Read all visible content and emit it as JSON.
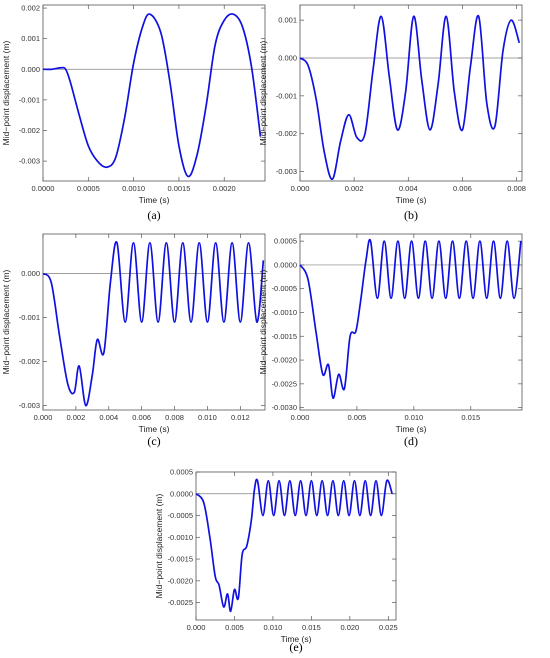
{
  "line_color": "#1010e0",
  "axis_color": "#808080",
  "chart_data": [
    {
      "id": "a",
      "type": "line",
      "caption": "(a)",
      "xlabel": "Time (s)",
      "ylabel": "Mid−point displacement (m)",
      "xlim": [
        0,
        0.00245
      ],
      "ylim": [
        -0.00365,
        0.0021
      ],
      "xticks": [
        "0.0000",
        "0.0005",
        "0.0010",
        "0.0015",
        "0.0020"
      ],
      "yticks": [
        "0.002",
        "0.001",
        "0.000",
        "-0.001",
        "-0.002",
        "-0.003"
      ],
      "x": [
        0,
        0.0001,
        0.0002,
        0.00025,
        0.0003,
        0.0004,
        0.0005,
        0.0006,
        0.0007,
        0.0008,
        0.0009,
        0.001,
        0.0011,
        0.00118,
        0.0013,
        0.0014,
        0.0015,
        0.0016,
        0.0017,
        0.0018,
        0.0019,
        0.002,
        0.0021,
        0.0022,
        0.0023,
        0.0024
      ],
      "y": [
        0,
        0,
        5e-05,
        0,
        -0.0004,
        -0.0015,
        -0.0025,
        -0.003,
        -0.0032,
        -0.0029,
        -0.0016,
        0.0002,
        0.0014,
        0.0018,
        0.0012,
        -0.0004,
        -0.0025,
        -0.0035,
        -0.0028,
        -0.0012,
        0.0008,
        0.0016,
        0.0018,
        0.0014,
        0.0001,
        -0.0022
      ]
    },
    {
      "id": "b",
      "type": "line",
      "caption": "(b)",
      "xlabel": "Time (s)",
      "ylabel": "Mid−point displacement (m)",
      "xlim": [
        0,
        0.0082
      ],
      "ylim": [
        -0.00325,
        0.0014
      ],
      "xticks": [
        "0.000",
        "0.002",
        "0.004",
        "0.006",
        "0.008"
      ],
      "yticks": [
        "0.001",
        "0.000",
        "-0.001",
        "-0.002",
        "-0.003"
      ],
      "x": [
        0,
        0.0003,
        0.0006,
        0.0009,
        0.0012,
        0.0015,
        0.0018,
        0.0021,
        0.0024,
        0.0027,
        0.003,
        0.0033,
        0.0036,
        0.0039,
        0.0042,
        0.0045,
        0.0048,
        0.0051,
        0.0054,
        0.0057,
        0.006,
        0.0063,
        0.0066,
        0.0069,
        0.0072,
        0.0075,
        0.0078,
        0.0081
      ],
      "y": [
        0,
        -0.0002,
        -0.0011,
        -0.0025,
        -0.0032,
        -0.0022,
        -0.0015,
        -0.0021,
        -0.002,
        -0.0003,
        0.0011,
        -0.0005,
        -0.0019,
        -0.0009,
        0.0011,
        -0.0006,
        -0.0019,
        -0.0007,
        0.0011,
        -0.0009,
        -0.0019,
        -0.0002,
        0.0011,
        -0.0012,
        -0.0018,
        0.0002,
        0.001,
        0.0004
      ]
    },
    {
      "id": "c",
      "type": "line",
      "caption": "(c)",
      "xlabel": "Time (s)",
      "ylabel": "Mid−point displacement (m)",
      "xlim": [
        0,
        0.0135
      ],
      "ylim": [
        -0.0031,
        0.0009
      ],
      "xticks": [
        "0.000",
        "0.002",
        "0.004",
        "0.006",
        "0.008",
        "0.010",
        "0.012"
      ],
      "yticks": [
        "0.000",
        "-0.001",
        "-0.002",
        "-0.003"
      ],
      "x": [
        0,
        0.0005,
        0.001,
        0.0015,
        0.0019,
        0.0022,
        0.0026,
        0.003,
        0.0033,
        0.0037,
        0.0041,
        0.0045,
        0.005,
        0.0055,
        0.006,
        0.0065,
        0.007,
        0.0075,
        0.008,
        0.0085,
        0.009,
        0.0095,
        0.01,
        0.0105,
        0.011,
        0.0115,
        0.012,
        0.0125,
        0.013,
        0.0134
      ],
      "y": [
        0,
        -0.0002,
        -0.0014,
        -0.0025,
        -0.0027,
        -0.0021,
        -0.003,
        -0.0023,
        -0.0015,
        -0.0018,
        -0.0002,
        0.0007,
        -0.0011,
        0.0007,
        -0.0011,
        0.0007,
        -0.0011,
        0.0007,
        -0.0011,
        0.0007,
        -0.0011,
        0.0007,
        -0.0011,
        0.0007,
        -0.0011,
        0.0007,
        -0.0011,
        0.0007,
        -0.0011,
        0.0003
      ]
    },
    {
      "id": "d",
      "type": "line",
      "caption": "(d)",
      "xlabel": "Time (s)",
      "ylabel": "Mid−point displacement (m)",
      "xlim": [
        0,
        0.0195
      ],
      "ylim": [
        -0.00305,
        0.00065
      ],
      "xticks": [
        "0.000",
        "0.005",
        "0.010",
        "0.015"
      ],
      "yticks": [
        "0.0005",
        "0.0000",
        "-0.0005",
        "-0.0010",
        "-0.0015",
        "-0.0020",
        "-0.0025",
        "-0.0030"
      ],
      "x": [
        0,
        0.0007,
        0.0014,
        0.002,
        0.0025,
        0.0029,
        0.0034,
        0.0039,
        0.0044,
        0.0049,
        0.0053,
        0.0058,
        0.0062,
        0.0068,
        0.0074,
        0.008,
        0.0086,
        0.0092,
        0.0098,
        0.0104,
        0.011,
        0.0116,
        0.0122,
        0.0128,
        0.0134,
        0.014,
        0.0146,
        0.0152,
        0.0158,
        0.0164,
        0.017,
        0.0176,
        0.0182,
        0.0188,
        0.0194
      ],
      "y": [
        0,
        -0.0003,
        -0.0014,
        -0.0023,
        -0.0021,
        -0.0028,
        -0.0023,
        -0.0026,
        -0.0015,
        -0.0014,
        -0.0008,
        0.0001,
        0.0005,
        -0.0007,
        0.0005,
        -0.0007,
        0.0005,
        -0.0007,
        0.0005,
        -0.0007,
        0.0005,
        -0.0007,
        0.0005,
        -0.0007,
        0.0005,
        -0.0007,
        0.0005,
        -0.0007,
        0.0005,
        -0.0007,
        0.0005,
        -0.0007,
        0.0005,
        -0.0007,
        0.0005
      ]
    },
    {
      "id": "e",
      "type": "line",
      "caption": "(e)",
      "xlabel": "Time (s)",
      "ylabel": "Mid−point displacement (m)",
      "xlim": [
        0,
        0.026
      ],
      "ylim": [
        -0.0029,
        0.0005
      ],
      "xticks": [
        "0.000",
        "0.005",
        "0.010",
        "0.015",
        "0.020",
        "0.025"
      ],
      "yticks": [
        "0.0005",
        "0.0000",
        "-0.0005",
        "-0.0010",
        "-0.0015",
        "-0.0020",
        "-0.0025"
      ],
      "x": [
        0,
        0.001,
        0.0018,
        0.0025,
        0.003,
        0.0036,
        0.0041,
        0.0045,
        0.005,
        0.0055,
        0.006,
        0.0066,
        0.0072,
        0.0076,
        0.008,
        0.0087,
        0.0094,
        0.0101,
        0.0108,
        0.0115,
        0.0122,
        0.0129,
        0.0136,
        0.0143,
        0.015,
        0.0157,
        0.0164,
        0.0171,
        0.0178,
        0.0185,
        0.0192,
        0.0199,
        0.0206,
        0.0213,
        0.022,
        0.0227,
        0.0234,
        0.0241,
        0.0248,
        0.0255
      ],
      "y": [
        0,
        -0.0002,
        -0.001,
        -0.0019,
        -0.0021,
        -0.0026,
        -0.0023,
        -0.0027,
        -0.0022,
        -0.0024,
        -0.0014,
        -0.0012,
        -0.0006,
        0.0001,
        0.0003,
        -0.0005,
        0.0003,
        -0.0005,
        0.0003,
        -0.0005,
        0.0003,
        -0.0005,
        0.0003,
        -0.0005,
        0.0003,
        -0.0005,
        0.0003,
        -0.0005,
        0.0003,
        -0.0005,
        0.0003,
        -0.0005,
        0.0003,
        -0.0005,
        0.0003,
        -0.0005,
        0.0003,
        -0.0005,
        0.0003,
        0.0
      ]
    }
  ]
}
